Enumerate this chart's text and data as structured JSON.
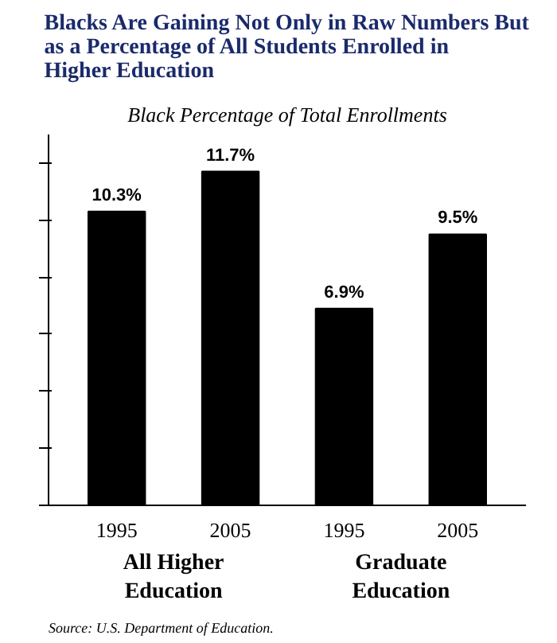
{
  "chart_data": {
    "type": "bar",
    "title": "Blacks Are Gaining Not Only in Raw Numbers But as a Percentage of All Students Enrolled in Higher Education",
    "subtitle": "Black Percentage of Total Enrollments",
    "categories": [
      "1995",
      "2005",
      "1995",
      "2005"
    ],
    "values": [
      10.3,
      11.7,
      6.9,
      9.5
    ],
    "value_labels": [
      "10.3%",
      "11.7%",
      "6.9%",
      "9.5%"
    ],
    "color": "#000000",
    "ylim": [
      0,
      13
    ],
    "yticks": [
      {
        "value": 0,
        "label": null
      },
      {
        "value": 2,
        "label": null
      },
      {
        "value": 4,
        "label": null
      },
      {
        "value": 6,
        "label": null
      },
      {
        "value": 8,
        "label": null
      },
      {
        "value": 10,
        "label": null
      },
      {
        "value": 12,
        "label": null
      }
    ],
    "grid": false,
    "annotations": [
      "All Higher Education",
      "Graduate Education",
      "Source: U.S. Department of Education."
    ]
  }
}
